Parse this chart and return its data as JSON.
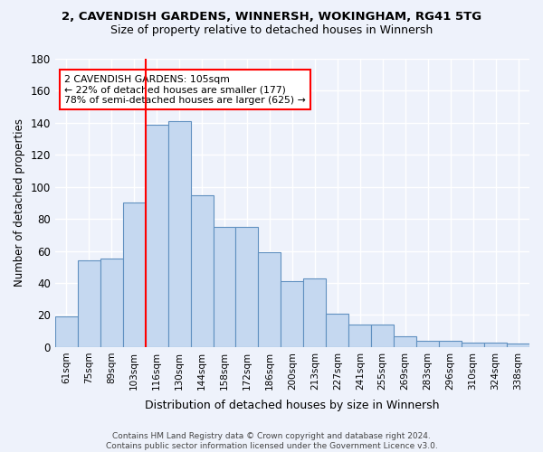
{
  "title1": "2, CAVENDISH GARDENS, WINNERSH, WOKINGHAM, RG41 5TG",
  "title2": "Size of property relative to detached houses in Winnersh",
  "xlabel": "Distribution of detached houses by size in Winnersh",
  "ylabel": "Number of detached properties",
  "bar_labels": [
    "61sqm",
    "75sqm",
    "89sqm",
    "103sqm",
    "116sqm",
    "130sqm",
    "144sqm",
    "158sqm",
    "172sqm",
    "186sqm",
    "200sqm",
    "213sqm",
    "227sqm",
    "241sqm",
    "255sqm",
    "269sqm",
    "283sqm",
    "296sqm",
    "310sqm",
    "324sqm",
    "338sqm"
  ],
  "bar_values": [
    19,
    54,
    55,
    90,
    139,
    141,
    95,
    75,
    75,
    59,
    41,
    43,
    21,
    14,
    14,
    7,
    4,
    4,
    3,
    3,
    2
  ],
  "bar_color": "#c5d8f0",
  "bar_edge_color": "#6090c0",
  "vline_pos": 3.5,
  "vline_color": "red",
  "annotation_line1": "2 CAVENDISH GARDENS: 105sqm",
  "annotation_line2": "← 22% of detached houses are smaller (177)",
  "annotation_line3": "78% of semi-detached houses are larger (625) →",
  "annotation_box_facecolor": "white",
  "annotation_box_edgecolor": "red",
  "footer_line1": "Contains HM Land Registry data © Crown copyright and database right 2024.",
  "footer_line2": "Contains public sector information licensed under the Government Licence v3.0.",
  "background_color": "#eef2fb",
  "ylim": [
    0,
    180
  ],
  "yticks": [
    0,
    20,
    40,
    60,
    80,
    100,
    120,
    140,
    160,
    180
  ],
  "grid_color": "white"
}
